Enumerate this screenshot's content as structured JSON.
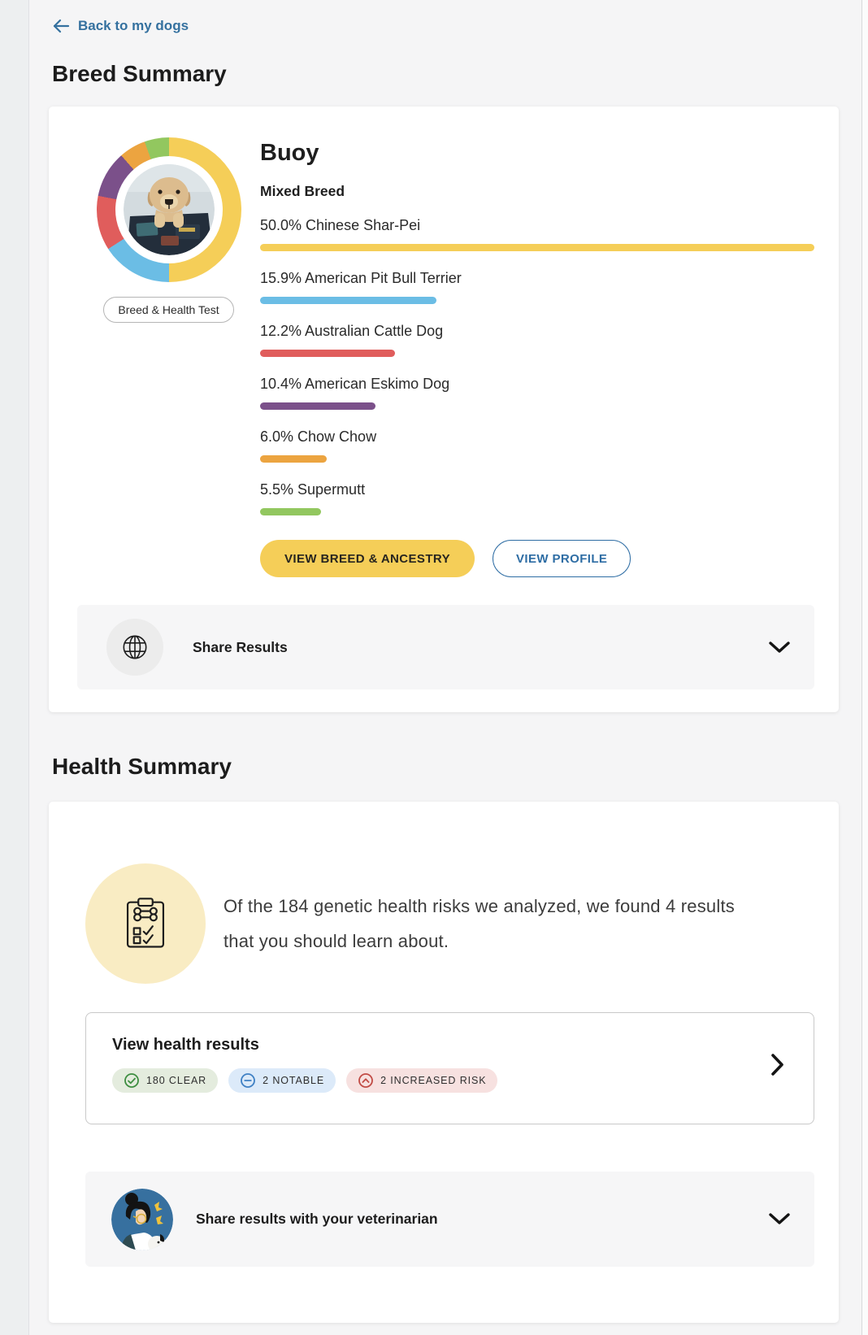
{
  "page": {
    "back_link_label": "Back to my dogs"
  },
  "breed_summary": {
    "title": "Breed Summary",
    "dog_name": "Buoy",
    "breed_type": "Mixed Breed",
    "test_badge": "Breed & Health Test",
    "breeds": [
      {
        "label": "50.0% Chinese Shar-Pei",
        "pct": 50.0,
        "color": "#F5CE58"
      },
      {
        "label": "15.9% American Pit Bull Terrier",
        "pct": 15.9,
        "color": "#6BBDE5"
      },
      {
        "label": "12.2% Australian Cattle Dog",
        "pct": 12.2,
        "color": "#E05D5C"
      },
      {
        "label": "10.4% American Eskimo Dog",
        "pct": 10.4,
        "color": "#7B508A"
      },
      {
        "label": "6.0% Chow Chow",
        "pct": 6.0,
        "color": "#ECA440"
      },
      {
        "label": "5.5% Supermutt",
        "pct": 5.5,
        "color": "#92C75F"
      }
    ],
    "primary_button": "VIEW BREED & ANCESTRY",
    "secondary_button": "VIEW PROFILE",
    "share_label": "Share Results"
  },
  "health_summary": {
    "title": "Health Summary",
    "description": "Of the 184 genetic health risks we analyzed, we found 4 results that you should learn about.",
    "results_card": {
      "title": "View health results",
      "badges": [
        {
          "label": "180 CLEAR",
          "icon": "check-circle",
          "bg": "#E4ECDE",
          "color": "#3E8E41"
        },
        {
          "label": "2 NOTABLE",
          "icon": "minus-circle",
          "bg": "#DCEAF9",
          "color": "#3F80C4"
        },
        {
          "label": "2 INCREASED RISK",
          "icon": "chevron-up-circle",
          "bg": "#F7E1E0",
          "color": "#C14B45"
        }
      ]
    },
    "vet_share_label": "Share results with your veterinarian"
  },
  "chart_data": {
    "type": "pie",
    "title": "Buoy breed composition (donut ring around avatar)",
    "categories": [
      "Chinese Shar-Pei",
      "American Pit Bull Terrier",
      "Australian Cattle Dog",
      "American Eskimo Dog",
      "Chow Chow",
      "Supermutt"
    ],
    "values": [
      50.0,
      15.9,
      12.2,
      10.4,
      6.0,
      5.5
    ],
    "colors": [
      "#F5CE58",
      "#6BBDE5",
      "#E05D5C",
      "#7B508A",
      "#ECA440",
      "#92C75F"
    ],
    "legend_position": "right-list-with-bars"
  }
}
